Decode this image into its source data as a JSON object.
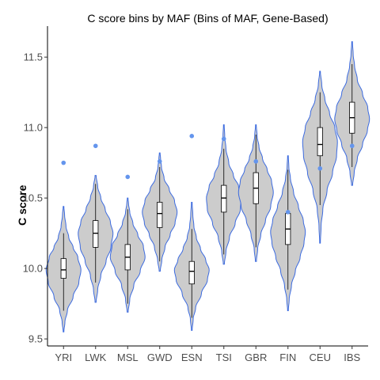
{
  "chart_data": {
    "type": "violin",
    "title": "C score bins by MAF (Bins of MAF, Gene-Based)",
    "xlabel": "",
    "ylabel": "C score",
    "ylim": [
      9.45,
      11.72
    ],
    "yticks": [
      9.5,
      10.0,
      10.5,
      11.0,
      11.5
    ],
    "ytick_labels": [
      "9.5",
      "10.0",
      "10.5",
      "11.0",
      "11.5"
    ],
    "grid": false,
    "colors": {
      "fill": "#cccccc",
      "outline": "#3c6be0",
      "outlier": "#6495ed",
      "box": "#000000"
    },
    "categories": [
      "YRI",
      "LWK",
      "MSL",
      "GWD",
      "ESN",
      "TSI",
      "GBR",
      "FIN",
      "CEU",
      "IBS"
    ],
    "groups": [
      {
        "name": "YRI",
        "min": 9.55,
        "max": 10.44,
        "q1": 9.93,
        "median": 9.99,
        "q3": 10.07,
        "whisker_low": 9.7,
        "whisker_high": 10.25,
        "outliers": [
          10.75
        ],
        "density": [
          [
            9.55,
            0.02
          ],
          [
            9.62,
            0.08
          ],
          [
            9.7,
            0.22
          ],
          [
            9.8,
            0.55
          ],
          [
            9.9,
            0.88
          ],
          [
            9.99,
            1.0
          ],
          [
            10.08,
            0.82
          ],
          [
            10.15,
            0.55
          ],
          [
            10.22,
            0.3
          ],
          [
            10.3,
            0.14
          ],
          [
            10.38,
            0.06
          ],
          [
            10.44,
            0.02
          ]
        ]
      },
      {
        "name": "LWK",
        "min": 9.76,
        "max": 10.66,
        "q1": 10.15,
        "median": 10.25,
        "q3": 10.34,
        "whisker_low": 9.9,
        "whisker_high": 10.6,
        "outliers": [
          10.87
        ],
        "density": [
          [
            9.76,
            0.03
          ],
          [
            9.85,
            0.12
          ],
          [
            9.95,
            0.3
          ],
          [
            10.05,
            0.6
          ],
          [
            10.15,
            0.88
          ],
          [
            10.25,
            1.0
          ],
          [
            10.33,
            0.85
          ],
          [
            10.42,
            0.55
          ],
          [
            10.5,
            0.3
          ],
          [
            10.58,
            0.12
          ],
          [
            10.66,
            0.03
          ]
        ]
      },
      {
        "name": "MSL",
        "min": 9.69,
        "max": 10.5,
        "q1": 9.99,
        "median": 10.08,
        "q3": 10.17,
        "whisker_low": 9.75,
        "whisker_high": 10.42,
        "outliers": [
          10.65
        ],
        "density": [
          [
            9.69,
            0.03
          ],
          [
            9.78,
            0.12
          ],
          [
            9.88,
            0.35
          ],
          [
            9.98,
            0.72
          ],
          [
            10.08,
            1.0
          ],
          [
            10.16,
            0.9
          ],
          [
            10.24,
            0.58
          ],
          [
            10.32,
            0.3
          ],
          [
            10.4,
            0.12
          ],
          [
            10.46,
            0.05
          ],
          [
            10.5,
            0.02
          ]
        ]
      },
      {
        "name": "GWD",
        "min": 9.98,
        "max": 10.82,
        "q1": 10.29,
        "median": 10.39,
        "q3": 10.47,
        "whisker_low": 10.05,
        "whisker_high": 10.72,
        "outliers": [
          10.76
        ],
        "density": [
          [
            9.98,
            0.03
          ],
          [
            10.06,
            0.12
          ],
          [
            10.15,
            0.3
          ],
          [
            10.24,
            0.6
          ],
          [
            10.32,
            0.88
          ],
          [
            10.4,
            1.0
          ],
          [
            10.48,
            0.85
          ],
          [
            10.56,
            0.55
          ],
          [
            10.64,
            0.25
          ],
          [
            10.72,
            0.1
          ],
          [
            10.78,
            0.05
          ],
          [
            10.82,
            0.02
          ]
        ]
      },
      {
        "name": "ESN",
        "min": 9.56,
        "max": 10.47,
        "q1": 9.89,
        "median": 9.98,
        "q3": 10.05,
        "whisker_low": 9.65,
        "whisker_high": 10.28,
        "outliers": [
          10.94
        ],
        "density": [
          [
            9.56,
            0.02
          ],
          [
            9.64,
            0.08
          ],
          [
            9.72,
            0.22
          ],
          [
            9.82,
            0.55
          ],
          [
            9.92,
            0.9
          ],
          [
            9.99,
            1.0
          ],
          [
            10.06,
            0.8
          ],
          [
            10.14,
            0.5
          ],
          [
            10.22,
            0.26
          ],
          [
            10.3,
            0.12
          ],
          [
            10.38,
            0.06
          ],
          [
            10.47,
            0.02
          ]
        ]
      },
      {
        "name": "TSI",
        "min": 10.03,
        "max": 11.02,
        "q1": 10.4,
        "median": 10.5,
        "q3": 10.59,
        "whisker_low": 10.1,
        "whisker_high": 10.85,
        "outliers": [
          10.92
        ],
        "density": [
          [
            10.03,
            0.03
          ],
          [
            10.12,
            0.12
          ],
          [
            10.22,
            0.32
          ],
          [
            10.32,
            0.65
          ],
          [
            10.42,
            0.95
          ],
          [
            10.5,
            1.0
          ],
          [
            10.58,
            0.85
          ],
          [
            10.66,
            0.55
          ],
          [
            10.75,
            0.28
          ],
          [
            10.85,
            0.12
          ],
          [
            10.94,
            0.05
          ],
          [
            11.02,
            0.02
          ]
        ]
      },
      {
        "name": "GBR",
        "min": 10.05,
        "max": 11.02,
        "q1": 10.46,
        "median": 10.57,
        "q3": 10.68,
        "whisker_low": 10.15,
        "whisker_high": 10.95,
        "outliers": [
          10.76
        ],
        "density": [
          [
            10.05,
            0.03
          ],
          [
            10.14,
            0.1
          ],
          [
            10.24,
            0.28
          ],
          [
            10.34,
            0.55
          ],
          [
            10.44,
            0.85
          ],
          [
            10.54,
            1.0
          ],
          [
            10.62,
            0.9
          ],
          [
            10.7,
            0.65
          ],
          [
            10.78,
            0.38
          ],
          [
            10.86,
            0.18
          ],
          [
            10.94,
            0.07
          ],
          [
            11.02,
            0.02
          ]
        ]
      },
      {
        "name": "FIN",
        "min": 9.7,
        "max": 10.8,
        "q1": 10.17,
        "median": 10.28,
        "q3": 10.39,
        "whisker_low": 9.85,
        "whisker_high": 10.7,
        "outliers": [
          10.4
        ],
        "density": [
          [
            9.7,
            0.02
          ],
          [
            9.78,
            0.07
          ],
          [
            9.88,
            0.2
          ],
          [
            9.98,
            0.42
          ],
          [
            10.08,
            0.7
          ],
          [
            10.18,
            0.92
          ],
          [
            10.26,
            1.0
          ],
          [
            10.34,
            0.88
          ],
          [
            10.44,
            0.6
          ],
          [
            10.54,
            0.32
          ],
          [
            10.64,
            0.14
          ],
          [
            10.72,
            0.05
          ],
          [
            10.8,
            0.02
          ]
        ]
      },
      {
        "name": "CEU",
        "min": 10.18,
        "max": 11.4,
        "q1": 10.8,
        "median": 10.88,
        "q3": 11.0,
        "whisker_low": 10.45,
        "whisker_high": 11.25,
        "outliers": [
          10.71
        ],
        "density": [
          [
            10.18,
            0.02
          ],
          [
            10.3,
            0.06
          ],
          [
            10.42,
            0.16
          ],
          [
            10.55,
            0.4
          ],
          [
            10.68,
            0.72
          ],
          [
            10.8,
            0.95
          ],
          [
            10.9,
            1.0
          ],
          [
            11.0,
            0.85
          ],
          [
            11.1,
            0.55
          ],
          [
            11.2,
            0.28
          ],
          [
            11.3,
            0.1
          ],
          [
            11.4,
            0.02
          ]
        ]
      },
      {
        "name": "IBS",
        "min": 10.59,
        "max": 11.61,
        "q1": 10.96,
        "median": 11.07,
        "q3": 11.18,
        "whisker_low": 10.72,
        "whisker_high": 11.45,
        "outliers": [
          10.87
        ],
        "density": [
          [
            10.59,
            0.03
          ],
          [
            10.68,
            0.12
          ],
          [
            10.78,
            0.3
          ],
          [
            10.88,
            0.6
          ],
          [
            10.98,
            0.88
          ],
          [
            11.06,
            1.0
          ],
          [
            11.14,
            0.9
          ],
          [
            11.24,
            0.6
          ],
          [
            11.34,
            0.3
          ],
          [
            11.44,
            0.14
          ],
          [
            11.52,
            0.06
          ],
          [
            11.61,
            0.02
          ]
        ]
      }
    ]
  }
}
